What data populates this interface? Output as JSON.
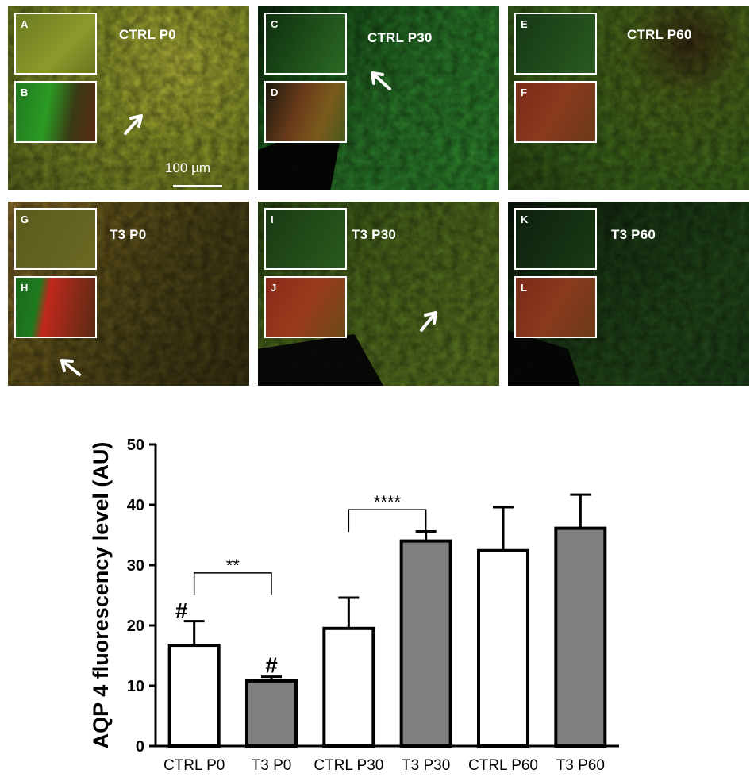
{
  "panels": [
    {
      "label": "CTRL P0",
      "inset_top": "A",
      "inset_bottom": "B",
      "scale": "100 µm"
    },
    {
      "label": "CTRL P30",
      "inset_top": "C",
      "inset_bottom": "D"
    },
    {
      "label": "CTRL P60",
      "inset_top": "E",
      "inset_bottom": "F"
    },
    {
      "label": "T3 P0",
      "inset_top": "G",
      "inset_bottom": "H"
    },
    {
      "label": "T3 P30",
      "inset_top": "I",
      "inset_bottom": "J"
    },
    {
      "label": "T3 P60",
      "inset_top": "K",
      "inset_bottom": "L"
    }
  ],
  "chart_data": {
    "type": "bar",
    "categories": [
      "CTRL P0",
      "T3 P0",
      "CTRL P30",
      "T3 P30",
      "CTRL P60",
      "T3 P60"
    ],
    "values": [
      16.7,
      10.8,
      19.5,
      34.0,
      32.4,
      36.1
    ],
    "errors": [
      4.0,
      0.7,
      5.1,
      1.6,
      7.2,
      5.6
    ],
    "fills": [
      "#ffffff",
      "#808080",
      "#ffffff",
      "#808080",
      "#ffffff",
      "#808080"
    ],
    "ylabel": "AQP 4 fluorescency level (AU)",
    "xlabel": "",
    "ylim": [
      0,
      50
    ],
    "yticks": [
      0,
      10,
      20,
      30,
      40,
      50
    ],
    "annotations": [
      {
        "type": "bracket",
        "from": "CTRL P0",
        "to": "T3 P0",
        "text": "**",
        "y": 28.7
      },
      {
        "type": "bracket",
        "from": "CTRL P30",
        "to": "T3 P30",
        "text": "****",
        "y": 39.2
      },
      {
        "type": "marker",
        "at": "CTRL P0",
        "text": "#",
        "y": 22.5
      },
      {
        "type": "marker",
        "at": "T3 P0",
        "text": "#",
        "y": 13.5
      }
    ]
  }
}
